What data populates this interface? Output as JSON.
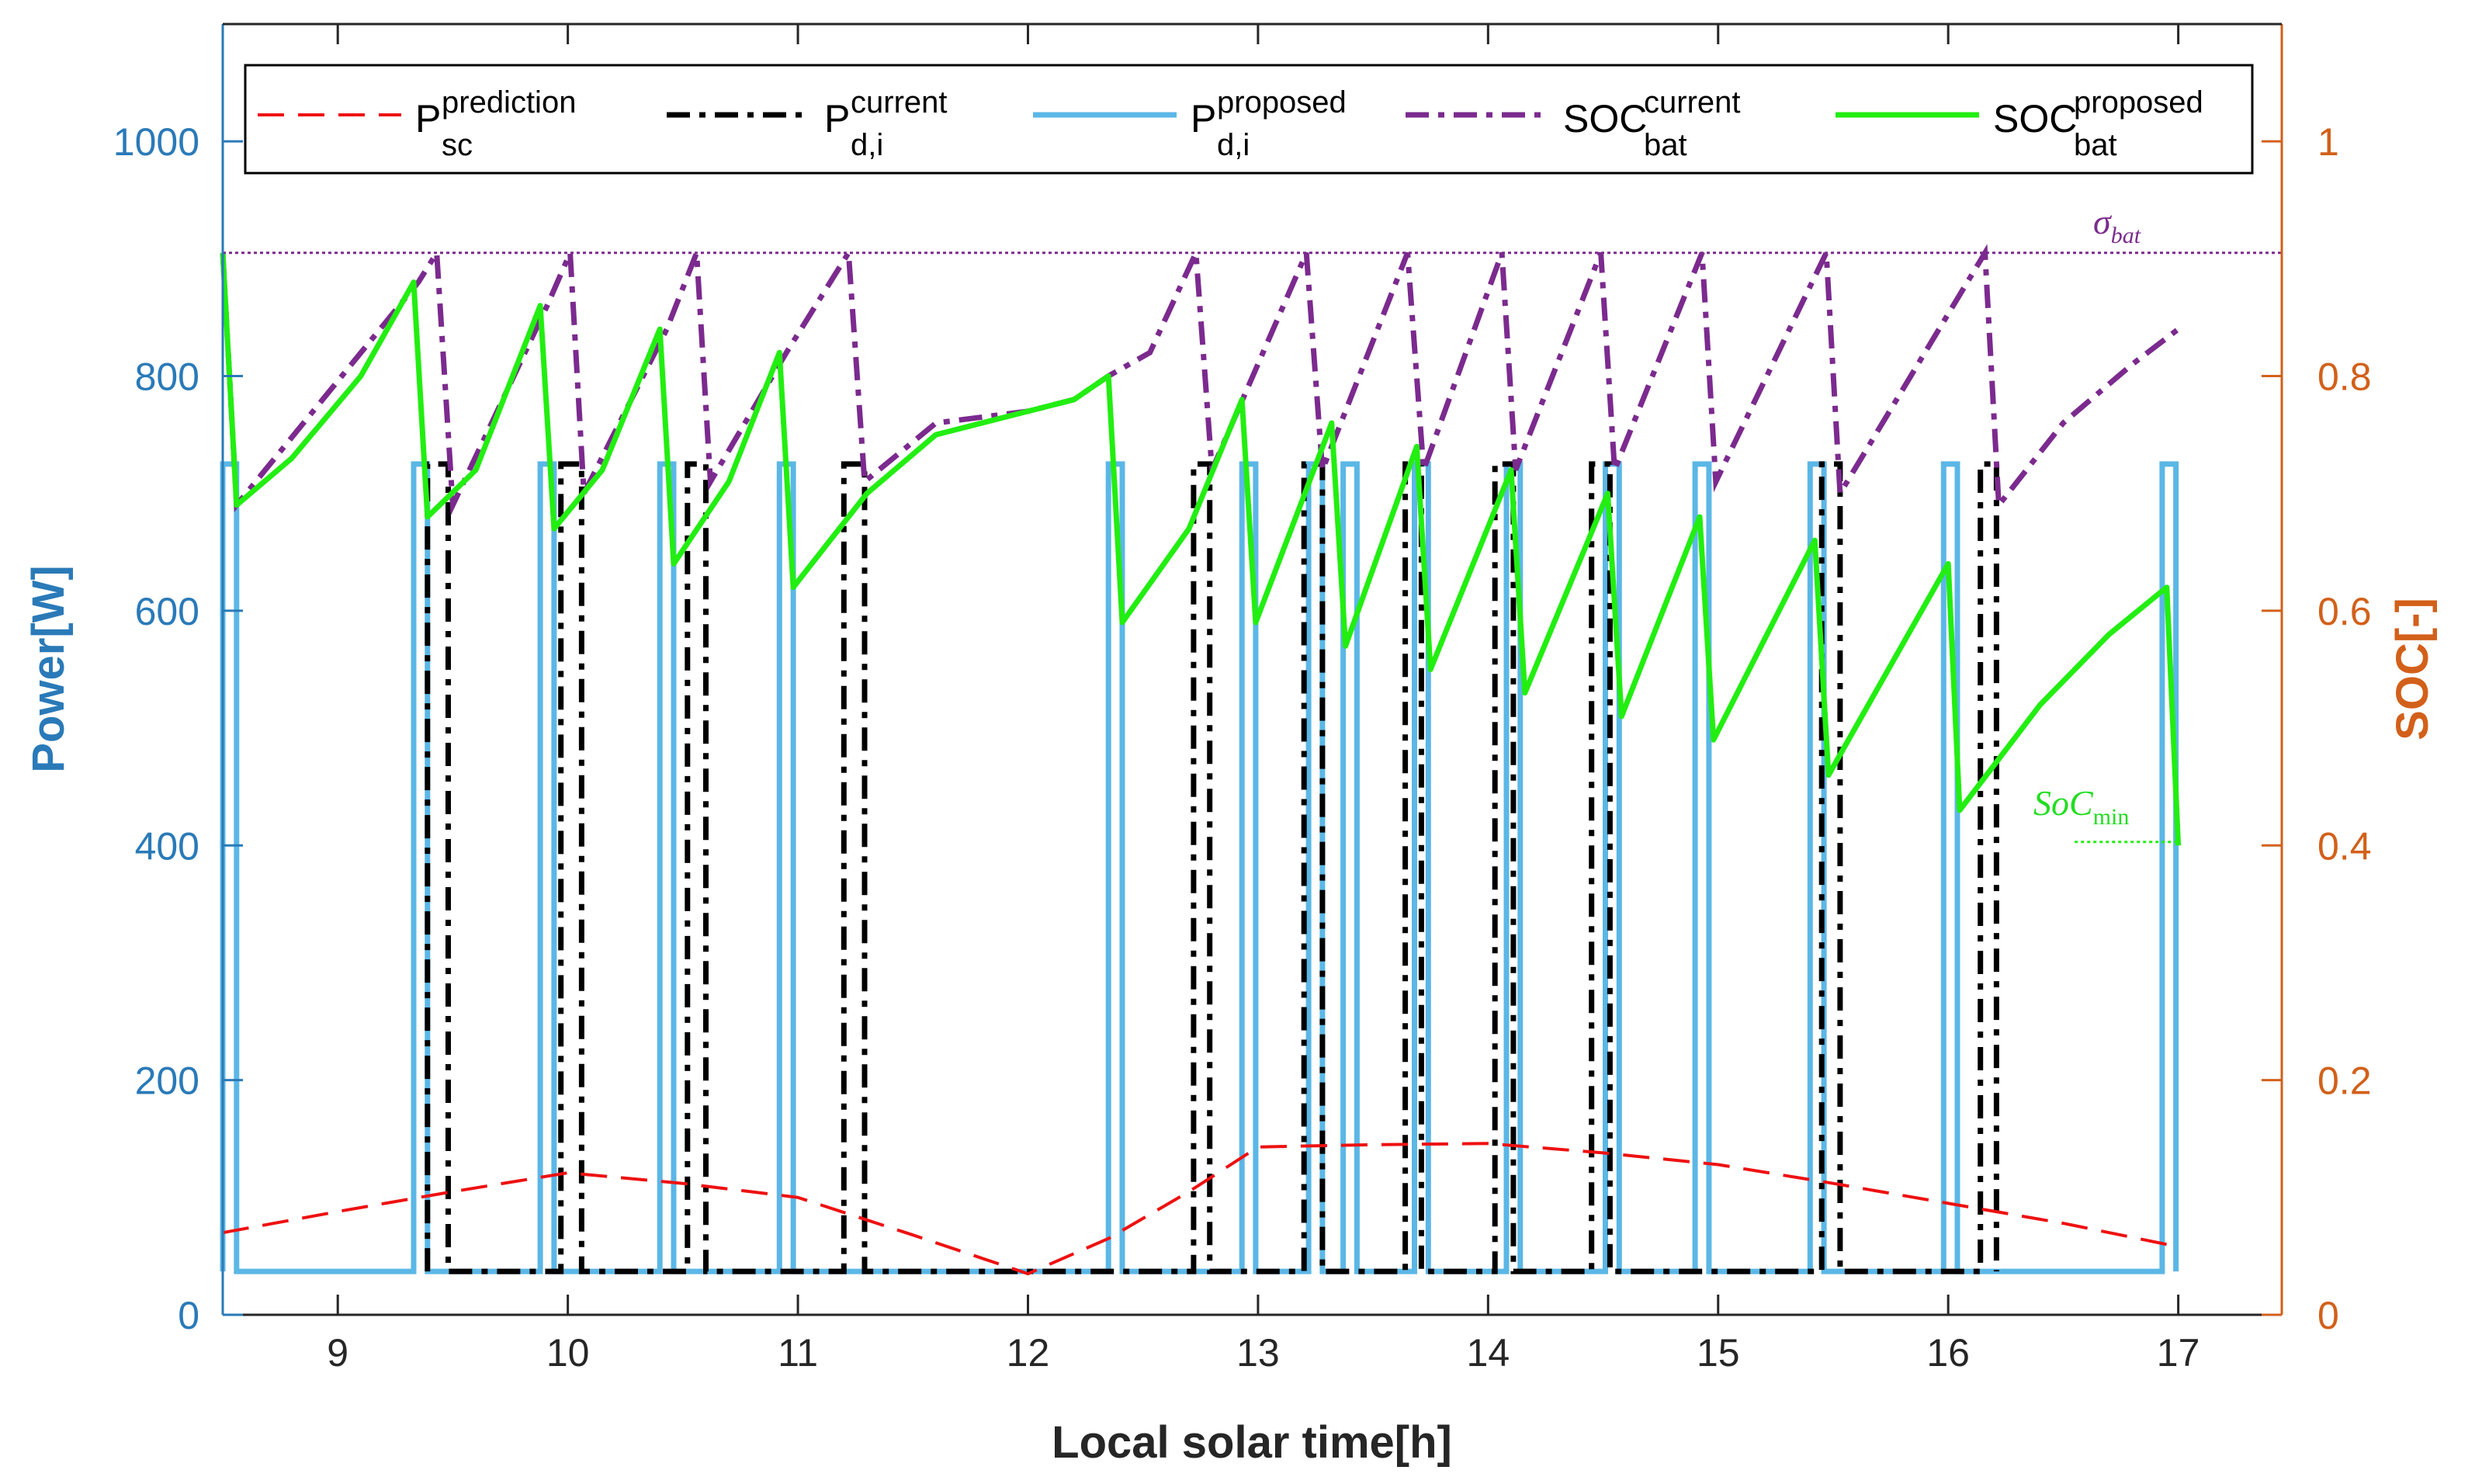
{
  "chart_data": {
    "type": "line",
    "xlabel": "Local solar time[h]",
    "ylabel_left": "Power[W]",
    "ylabel_right": "SOC[-]",
    "xlim": [
      8.5,
      17.45
    ],
    "ylim_left": [
      0,
      1100
    ],
    "ylim_right": [
      0,
      1.1
    ],
    "xticks": [
      9,
      10,
      11,
      12,
      13,
      14,
      15,
      16,
      17
    ],
    "yticks_left": [
      0,
      200,
      400,
      600,
      800,
      1000
    ],
    "yticks_right": [
      0,
      0.2,
      0.4,
      0.6,
      0.8,
      1
    ],
    "colors": {
      "left_axis": "#2a7ab8",
      "right_axis": "#d2601a",
      "prediction": "#ee1111",
      "pd_current": "#000000",
      "pd_proposed": "#5bb7e6",
      "soc_current": "#7b2a8e",
      "soc_proposed": "#22ee11"
    },
    "legend": {
      "items": [
        {
          "key": "prediction",
          "main": "P",
          "sub": "sc",
          "sup": "prediction"
        },
        {
          "key": "pd_current",
          "main": "P",
          "sub": "d,i",
          "sup": "current"
        },
        {
          "key": "pd_proposed",
          "main": "P",
          "sub": "d,i",
          "sup": "proposed"
        },
        {
          "key": "soc_current",
          "main": "SOC",
          "sub": "bat",
          "sup": "current"
        },
        {
          "key": "soc_proposed",
          "main": "SOC",
          "sub": "bat",
          "sup": "proposed"
        }
      ]
    },
    "annotations": {
      "sigma": {
        "symbol": "σ",
        "sub": "bat",
        "soc_level": 0.905
      },
      "socmin": {
        "main": "SoC",
        "sub": "min",
        "soc_level": 0.403
      }
    },
    "series": [
      {
        "name": "P_sc^prediction",
        "axis": "left",
        "points": [
          [
            8.5,
            70
          ],
          [
            9.0,
            88
          ],
          [
            9.5,
            105
          ],
          [
            10.0,
            121
          ],
          [
            10.5,
            112
          ],
          [
            11.0,
            100
          ],
          [
            11.5,
            68
          ],
          [
            12.0,
            35
          ],
          [
            12.35,
            65
          ],
          [
            12.7,
            105
          ],
          [
            13.0,
            143
          ],
          [
            13.5,
            145
          ],
          [
            14.0,
            146
          ],
          [
            14.5,
            138
          ],
          [
            15.0,
            128
          ],
          [
            15.5,
            112
          ],
          [
            16.0,
            95
          ],
          [
            16.5,
            78
          ],
          [
            17.0,
            58
          ]
        ]
      },
      {
        "name": "P_d,i^current",
        "axis": "left",
        "base": 37,
        "high": 725,
        "pulses": [
          [
            9.39,
            9.48
          ],
          [
            9.97,
            10.06
          ],
          [
            10.52,
            10.6
          ],
          [
            11.2,
            11.29
          ],
          [
            12.72,
            12.79
          ],
          [
            13.2,
            13.28
          ],
          [
            13.64,
            13.71
          ],
          [
            14.03,
            14.11
          ],
          [
            14.45,
            14.53
          ],
          [
            15.45,
            15.53
          ],
          [
            16.14,
            16.21
          ]
        ]
      },
      {
        "name": "P_d,i^proposed",
        "axis": "left",
        "base": 37,
        "high": 725,
        "pulses": [
          [
            8.5,
            8.56
          ],
          [
            9.33,
            9.39
          ],
          [
            9.88,
            9.94
          ],
          [
            10.4,
            10.46
          ],
          [
            10.92,
            10.98
          ],
          [
            12.35,
            12.41
          ],
          [
            12.93,
            12.99
          ],
          [
            13.22,
            13.28
          ],
          [
            13.37,
            13.43
          ],
          [
            13.68,
            13.74
          ],
          [
            14.08,
            14.14
          ],
          [
            14.51,
            14.57
          ],
          [
            14.9,
            14.96
          ],
          [
            15.4,
            15.46
          ],
          [
            15.98,
            16.04
          ],
          [
            16.93,
            16.99
          ]
        ]
      },
      {
        "name": "SOC_bat^current",
        "axis": "right",
        "points": [
          [
            8.5,
            0.905
          ],
          [
            8.56,
            0.69
          ],
          [
            9.35,
            0.88
          ],
          [
            9.43,
            0.905
          ],
          [
            9.5,
            0.69
          ],
          [
            9.91,
            0.86
          ],
          [
            10.01,
            0.905
          ],
          [
            10.07,
            0.7
          ],
          [
            10.43,
            0.84
          ],
          [
            10.56,
            0.905
          ],
          [
            10.62,
            0.71
          ],
          [
            10.95,
            0.82
          ],
          [
            11.22,
            0.905
          ],
          [
            11.29,
            0.71
          ],
          [
            11.6,
            0.76
          ],
          [
            12.0,
            0.77
          ],
          [
            12.2,
            0.78
          ],
          [
            12.35,
            0.8
          ],
          [
            12.53,
            0.82
          ],
          [
            12.73,
            0.905
          ],
          [
            12.8,
            0.72
          ],
          [
            13.21,
            0.905
          ],
          [
            13.28,
            0.72
          ],
          [
            13.65,
            0.905
          ],
          [
            13.72,
            0.72
          ],
          [
            14.06,
            0.905
          ],
          [
            14.12,
            0.72
          ],
          [
            14.49,
            0.905
          ],
          [
            14.55,
            0.72
          ],
          [
            14.93,
            0.905
          ],
          [
            14.99,
            0.71
          ],
          [
            15.47,
            0.905
          ],
          [
            15.53,
            0.7
          ],
          [
            16.16,
            0.905
          ],
          [
            16.22,
            0.69
          ],
          [
            16.5,
            0.76
          ],
          [
            16.8,
            0.81
          ],
          [
            17.0,
            0.84
          ]
        ]
      },
      {
        "name": "SOC_bat^proposed",
        "axis": "right",
        "points": [
          [
            8.5,
            0.905
          ],
          [
            8.56,
            0.69
          ],
          [
            8.8,
            0.73
          ],
          [
            9.1,
            0.8
          ],
          [
            9.33,
            0.88
          ],
          [
            9.39,
            0.68
          ],
          [
            9.6,
            0.72
          ],
          [
            9.88,
            0.86
          ],
          [
            9.94,
            0.67
          ],
          [
            10.15,
            0.72
          ],
          [
            10.4,
            0.84
          ],
          [
            10.46,
            0.64
          ],
          [
            10.7,
            0.71
          ],
          [
            10.92,
            0.82
          ],
          [
            10.98,
            0.62
          ],
          [
            11.3,
            0.7
          ],
          [
            11.6,
            0.75
          ],
          [
            12.0,
            0.77
          ],
          [
            12.2,
            0.78
          ],
          [
            12.35,
            0.8
          ],
          [
            12.41,
            0.59
          ],
          [
            12.7,
            0.67
          ],
          [
            12.93,
            0.78
          ],
          [
            12.99,
            0.59
          ],
          [
            13.32,
            0.76
          ],
          [
            13.38,
            0.57
          ],
          [
            13.69,
            0.74
          ],
          [
            13.75,
            0.55
          ],
          [
            14.1,
            0.72
          ],
          [
            14.16,
            0.53
          ],
          [
            14.52,
            0.7
          ],
          [
            14.58,
            0.51
          ],
          [
            14.92,
            0.68
          ],
          [
            14.98,
            0.49
          ],
          [
            15.42,
            0.66
          ],
          [
            15.48,
            0.46
          ],
          [
            16.0,
            0.64
          ],
          [
            16.05,
            0.43
          ],
          [
            16.4,
            0.52
          ],
          [
            16.7,
            0.58
          ],
          [
            16.95,
            0.62
          ],
          [
            17.0,
            0.4
          ]
        ]
      }
    ]
  }
}
